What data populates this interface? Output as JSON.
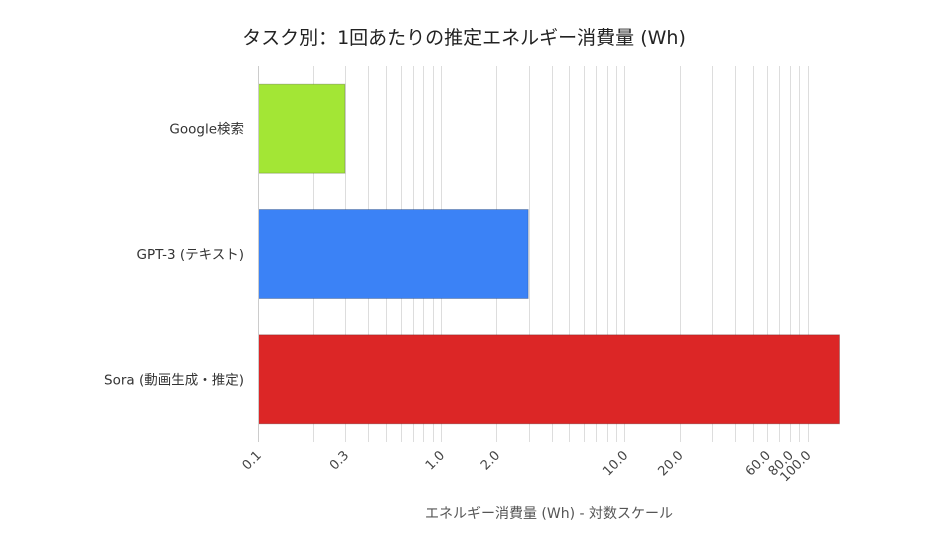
{
  "chart_data": {
    "type": "bar",
    "orientation": "horizontal",
    "title": "タスク別：1回あたりの推定エネルギー消費量 (Wh)",
    "xlabel": "エネルギー消費量 (Wh) - 対数スケール",
    "ylabel": "",
    "x_scale": "log",
    "xlim": [
      0.1,
      150
    ],
    "x_ticks": [
      0.1,
      0.3,
      1.0,
      2.0,
      10.0,
      20.0,
      60.0,
      80.0,
      100.0
    ],
    "x_tick_labels": [
      "0.1",
      "0.3",
      "1.0",
      "2.0",
      "10.0",
      "20.0",
      "60.0",
      "80.0",
      "100.0"
    ],
    "x_gridlines": [
      0.1,
      0.2,
      0.3,
      0.4,
      0.5,
      0.6,
      0.7,
      0.8,
      0.9,
      1,
      2,
      3,
      4,
      5,
      6,
      7,
      8,
      9,
      10,
      20,
      30,
      40,
      50,
      60,
      70,
      80,
      90,
      100
    ],
    "grid": true,
    "legend": "none",
    "categories": [
      "Google検索",
      "GPT-3 (テキスト)",
      "Sora (動画生成・推定)"
    ],
    "values": [
      0.3,
      3.0,
      150
    ],
    "colors": [
      "#a3e635",
      "#3b82f6",
      "#dc2626"
    ]
  }
}
